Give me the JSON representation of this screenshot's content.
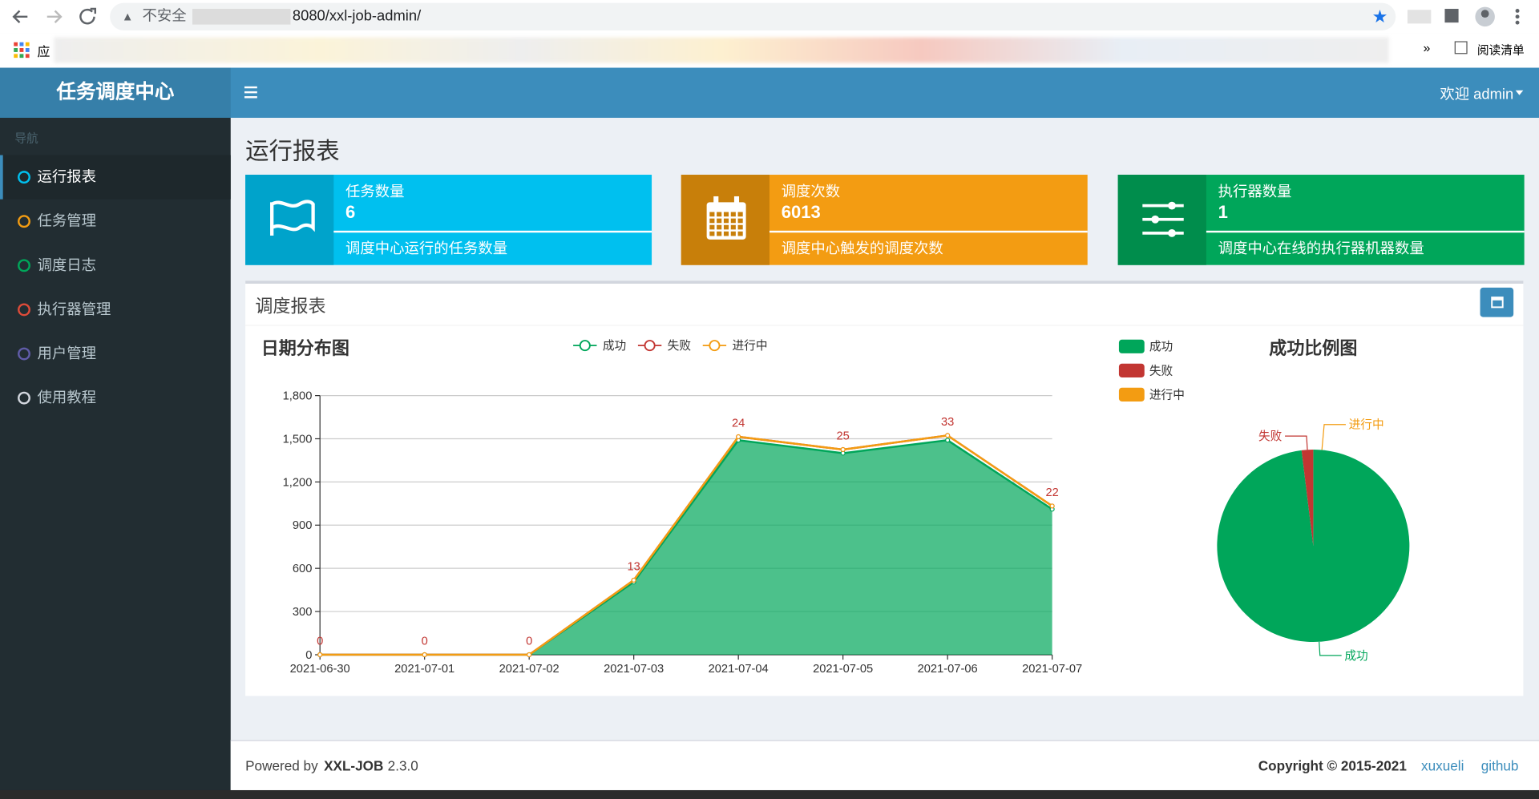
{
  "browser": {
    "security": "不安全",
    "url": "8080/xxl-job-admin/",
    "apps": "应",
    "more": "»",
    "reading_list": "阅读清单"
  },
  "header": {
    "logo": "任务调度中心",
    "user": "欢迎 admin"
  },
  "nav": {
    "header": "导航",
    "items": [
      "运行报表",
      "任务管理",
      "调度日志",
      "执行器管理",
      "用户管理",
      "使用教程"
    ]
  },
  "page_title": "运行报表",
  "info_boxes": [
    {
      "title": "任务数量",
      "number": 6,
      "desc": "调度中心运行的任务数量"
    },
    {
      "title": "调度次数",
      "number": 6013,
      "desc": "调度中心触发的调度次数"
    },
    {
      "title": "执行器数量",
      "number": 1,
      "desc": "调度中心在线的执行器机器数量"
    }
  ],
  "panel_title": "调度报表",
  "chart_data": [
    {
      "type": "line",
      "title": "日期分布图",
      "stacked": true,
      "categories": [
        "2021-06-30",
        "2021-07-01",
        "2021-07-02",
        "2021-07-03",
        "2021-07-04",
        "2021-07-05",
        "2021-07-06",
        "2021-07-07"
      ],
      "series": [
        {
          "name": "成功",
          "color": "#00A65A",
          "area": true,
          "values": [
            0,
            0,
            0,
            505,
            1490,
            1400,
            1490,
            1011
          ]
        },
        {
          "name": "失败",
          "color": "#c23632",
          "show_labels": true,
          "values": [
            0,
            0,
            0,
            13,
            24,
            25,
            33,
            22
          ]
        },
        {
          "name": "进行中",
          "color": "#F39C12",
          "values": [
            0,
            0,
            0,
            0,
            0,
            0,
            0,
            0
          ]
        }
      ],
      "ylim": [
        0,
        1800
      ],
      "yticks": [
        0,
        300,
        600,
        900,
        {
          "value": 1200,
          "label": "1,200"
        },
        {
          "value": 1500,
          "label": "1,500"
        },
        {
          "value": 1800,
          "label": "1,800"
        }
      ],
      "grid": true
    },
    {
      "type": "pie",
      "title": "成功比例图",
      "categories": [
        "成功",
        "失败",
        "进行中"
      ],
      "values": [
        5896,
        117,
        0
      ],
      "colors": [
        "#00A65A",
        "#c23632",
        "#F39C12"
      ]
    }
  ],
  "footer": {
    "powered": "Powered by",
    "product": "XXL-JOB",
    "version": "2.3.0",
    "copyright": "Copyright © 2015-2021",
    "author": "xuxueli",
    "github": "github"
  }
}
